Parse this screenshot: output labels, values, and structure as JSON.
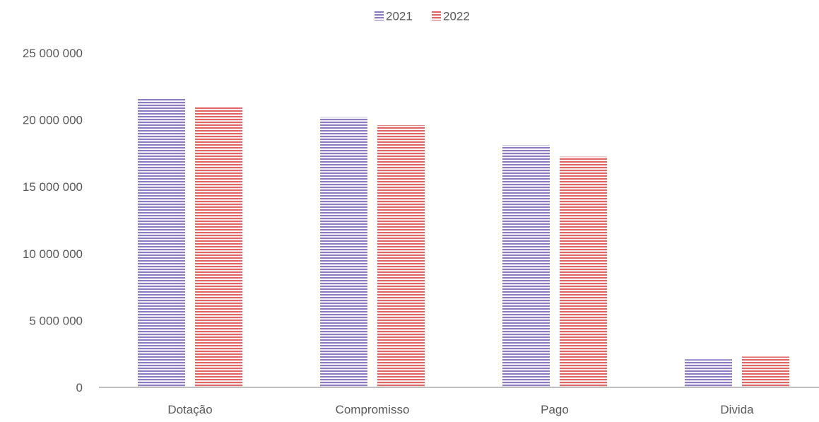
{
  "chart_data": {
    "type": "bar",
    "title": "",
    "xlabel": "",
    "ylabel": "",
    "categories": [
      "Dotação",
      "Compromisso",
      "Pago",
      "Divida"
    ],
    "series": [
      {
        "name": "2021",
        "values": [
          21600000,
          20200000,
          18100000,
          2100000
        ],
        "color": "#8e7cc3"
      },
      {
        "name": "2022",
        "values": [
          20950000,
          19600000,
          17250000,
          2300000
        ],
        "color": "#e06666"
      }
    ],
    "ylim": [
      0,
      25000000
    ],
    "yticks": [
      0,
      5000000,
      10000000,
      15000000,
      20000000,
      25000000
    ],
    "ytick_labels": [
      "0",
      "5 000 000",
      "10 000 000",
      "15 000 000",
      "20 000 000",
      "25 000 000"
    ],
    "grid": false,
    "legend_position": "top-center",
    "bar_fill": "horizontal-stripes"
  }
}
